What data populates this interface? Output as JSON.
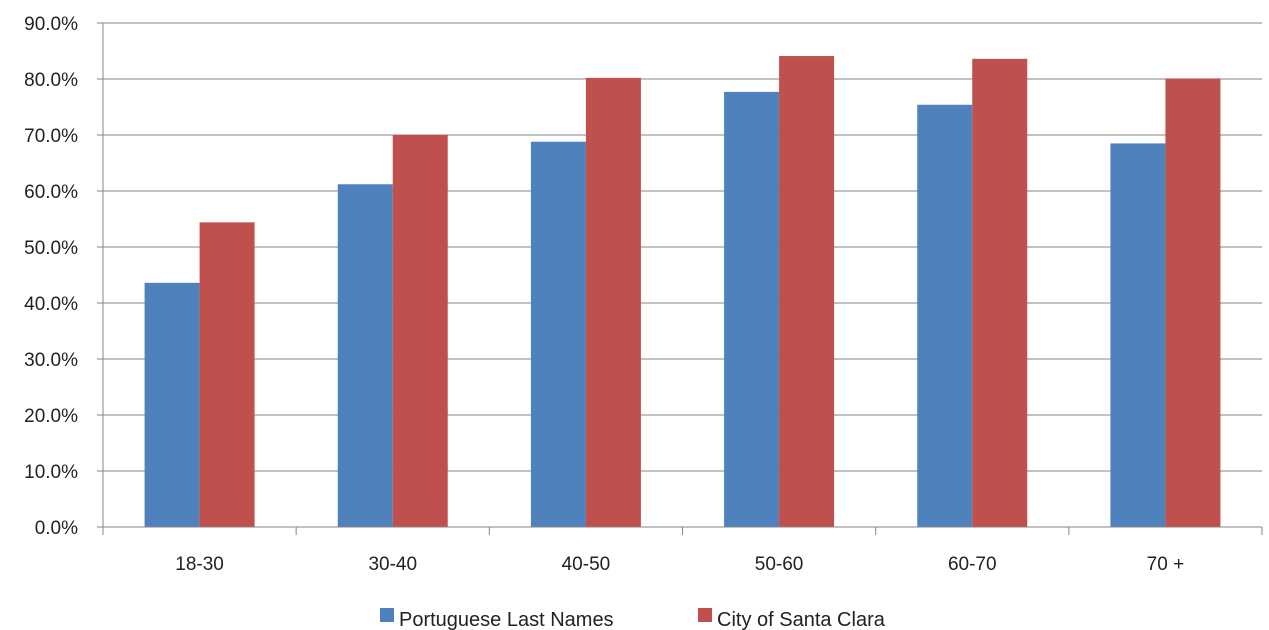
{
  "chart_data": {
    "type": "bar",
    "title": "",
    "xlabel": "",
    "ylabel": "",
    "categories": [
      "18-30",
      "30-40",
      "40-50",
      "50-60",
      "60-70",
      "70 +"
    ],
    "series": [
      {
        "name": "Portuguese Last Names",
        "color": "#4F81BD",
        "values": [
          43.6,
          61.2,
          68.8,
          77.7,
          75.4,
          68.5
        ]
      },
      {
        "name": "City of Santa Clara",
        "color": "#C0504D",
        "values": [
          54.4,
          70.0,
          80.2,
          84.1,
          83.6,
          80.1
        ]
      }
    ],
    "ylim": [
      0,
      90
    ],
    "y_ticks": [
      "0.0%",
      "10.0%",
      "20.0%",
      "30.0%",
      "40.0%",
      "50.0%",
      "60.0%",
      "70.0%",
      "80.0%",
      "90.0%"
    ],
    "y_tick_step": 10,
    "grid": true,
    "legend_position": "bottom"
  }
}
